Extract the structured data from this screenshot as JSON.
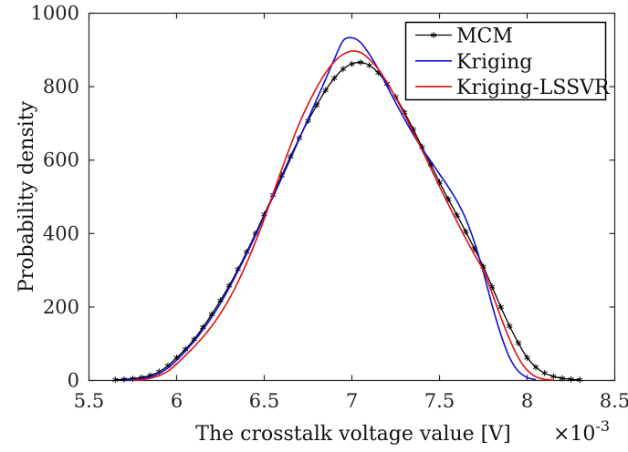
{
  "figure": {
    "background": "#ffffff",
    "axis_color": "#262626",
    "tick_label_color": "#232323",
    "label_color": "#111111"
  },
  "chart_data": {
    "type": "line",
    "title": "",
    "xlabel": "The crosstalk voltage value [V]",
    "x_multiplier": {
      "base": "×10",
      "exponent": "-3"
    },
    "ylabel": "Probability density",
    "xlim": [
      5.5,
      8.5
    ],
    "ylim": [
      0,
      1000
    ],
    "xtick_values": [
      5.5,
      6,
      6.5,
      7,
      7.5,
      8,
      8.5
    ],
    "xtick_labels": [
      "5.5",
      "6",
      "6.5",
      "7",
      "7.5",
      "8",
      "8.5"
    ],
    "ytick_values": [
      0,
      200,
      400,
      600,
      800,
      1000
    ],
    "ytick_labels": [
      "0",
      "200",
      "400",
      "600",
      "800",
      "1000"
    ],
    "grid": false,
    "box": true,
    "legend": {
      "position": "top-right",
      "border_color": "#000000",
      "background": "#ffffff"
    },
    "series": [
      {
        "name": "MCM",
        "color": "#000000",
        "marker": "asterisk",
        "line_width": 1.3,
        "x0": 5.65,
        "dx": 0.05,
        "y": [
          2,
          3,
          5,
          8,
          14,
          24,
          40,
          62,
          85,
          112,
          145,
          180,
          218,
          258,
          303,
          350,
          400,
          452,
          505,
          558,
          610,
          660,
          707,
          750,
          790,
          823,
          848,
          862,
          866,
          858,
          838,
          808,
          772,
          730,
          684,
          636,
          588,
          540,
          494,
          450,
          405,
          358,
          310,
          255,
          200,
          148,
          102,
          62,
          36,
          20,
          11,
          6,
          3,
          2
        ]
      },
      {
        "name": "Kriging",
        "color": "#0f0fd6",
        "marker": "none",
        "line_width": 1.6,
        "x0": 5.7,
        "dx": 0.05,
        "y": [
          0,
          2,
          5,
          10,
          19,
          34,
          55,
          80,
          107,
          138,
          172,
          210,
          252,
          298,
          345,
          395,
          448,
          500,
          552,
          604,
          658,
          712,
          766,
          820,
          875,
          925,
          933,
          920,
          888,
          848,
          802,
          756,
          712,
          670,
          632,
          597,
          562,
          527,
          488,
          440,
          375,
          295,
          205,
          125,
          62,
          25,
          8,
          2
        ]
      },
      {
        "name": "Kriging-LSSVR",
        "color": "#dd1111",
        "marker": "none",
        "line_width": 1.6,
        "x0": 5.75,
        "dx": 0.05,
        "y": [
          0,
          2,
          6,
          13,
          25,
          45,
          68,
          92,
          118,
          148,
          182,
          222,
          268,
          320,
          378,
          440,
          508,
          575,
          640,
          700,
          752,
          798,
          838,
          868,
          888,
          897,
          893,
          875,
          848,
          812,
          770,
          724,
          676,
          627,
          578,
          528,
          480,
          432,
          386,
          342,
          300,
          238,
          172,
          112,
          62,
          28,
          10,
          3,
          1
        ]
      }
    ]
  }
}
